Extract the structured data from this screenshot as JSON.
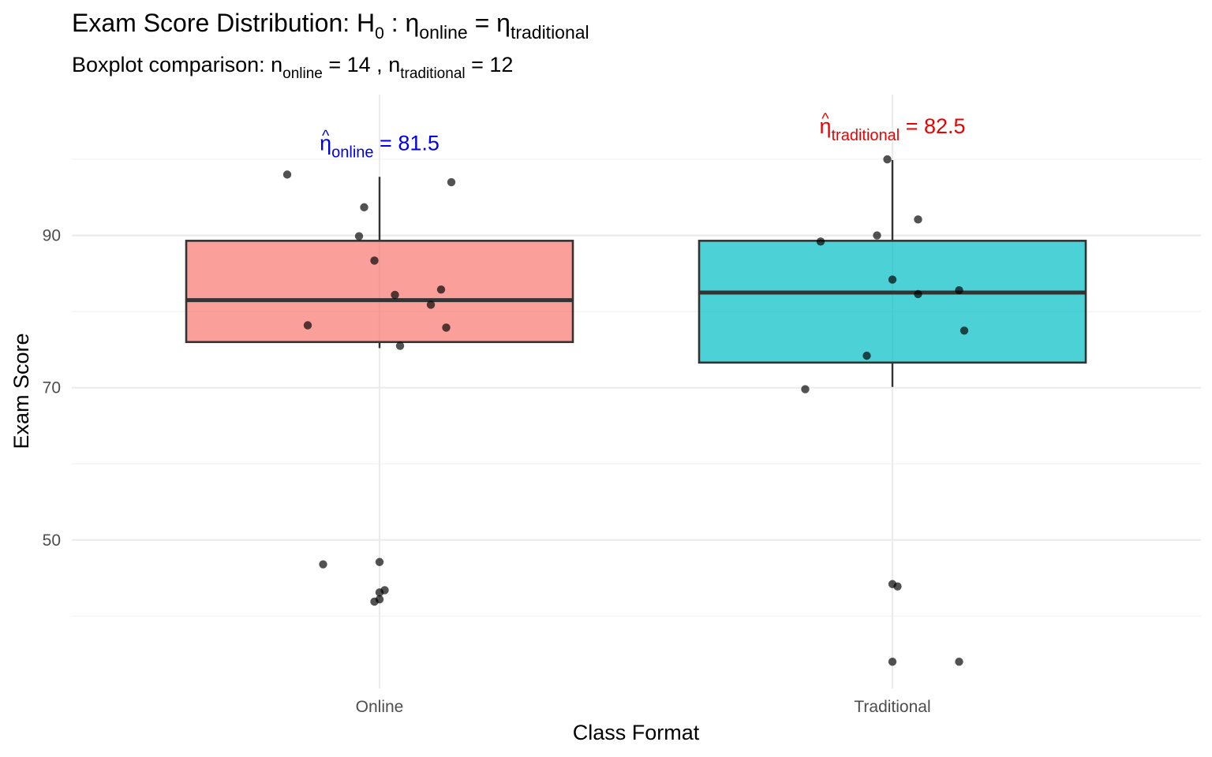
{
  "chart_data": {
    "type": "boxplot",
    "title": {
      "prefix": "Exam Score Distribution:  ",
      "h": "H",
      "h_sub": "0",
      "colon": " : ",
      "eta": "η",
      "sub1": "online",
      "equals": " = ",
      "sub2": "traditional"
    },
    "subtitle": {
      "prefix": "Boxplot comparison:  ",
      "n": "n",
      "sub1": "online",
      "mid1": " = 14 ,  ",
      "sub2": "traditional",
      "mid2": " = 12"
    },
    "xlabel": "Class Format",
    "ylabel": "Exam Score",
    "categories": [
      "Online",
      "Traditional"
    ],
    "yticks": [
      50,
      70,
      90
    ],
    "ylim": [
      30.5,
      108.5
    ],
    "grid": true,
    "legend": "none",
    "series": [
      {
        "category": "Online",
        "color": "#F8766D",
        "box": {
          "q1": 76.0,
          "median": 81.5,
          "q3": 89.3,
          "whisker_low": 75.2,
          "whisker_high": 97.7
        },
        "median_label": {
          "eta": "η",
          "hat": "^",
          "sub": "online",
          "value": " = 81.5",
          "color": "#0000EE"
        },
        "points": [
          {
            "dx": -0.18,
            "y": 98.0
          },
          {
            "dx": -0.03,
            "y": 93.7
          },
          {
            "dx": 0.14,
            "y": 97.0
          },
          {
            "dx": -0.04,
            "y": 89.9
          },
          {
            "dx": -0.01,
            "y": 86.7
          },
          {
            "dx": 0.03,
            "y": 82.2
          },
          {
            "dx": 0.12,
            "y": 82.9
          },
          {
            "dx": 0.1,
            "y": 80.9
          },
          {
            "dx": -0.14,
            "y": 78.2
          },
          {
            "dx": 0.13,
            "y": 77.9
          },
          {
            "dx": 0.04,
            "y": 75.5
          },
          {
            "dx": -0.11,
            "y": 46.8
          },
          {
            "dx": 0.0,
            "y": 47.1
          },
          {
            "dx": 0.01,
            "y": 43.4
          },
          {
            "dx": 0.0,
            "y": 43.1
          },
          {
            "dx": 0.0,
            "y": 42.2
          },
          {
            "dx": -0.01,
            "y": 41.9
          }
        ]
      },
      {
        "category": "Traditional",
        "color": "#00BFC4",
        "box": {
          "q1": 73.3,
          "median": 82.5,
          "q3": 89.3,
          "whisker_low": 70.1,
          "whisker_high": 99.9
        },
        "median_label": {
          "eta": "η",
          "hat": "^",
          "sub": "traditional",
          "value": " = 82.5",
          "color": "#EE0000"
        },
        "points": [
          {
            "dx": -0.01,
            "y": 100.0
          },
          {
            "dx": 0.05,
            "y": 92.1
          },
          {
            "dx": -0.14,
            "y": 89.2
          },
          {
            "dx": -0.03,
            "y": 90.0
          },
          {
            "dx": 0.0,
            "y": 84.2
          },
          {
            "dx": 0.05,
            "y": 82.3
          },
          {
            "dx": 0.13,
            "y": 82.8
          },
          {
            "dx": 0.14,
            "y": 77.5
          },
          {
            "dx": -0.05,
            "y": 74.2
          },
          {
            "dx": -0.17,
            "y": 69.8
          },
          {
            "dx": 0.0,
            "y": 44.2
          },
          {
            "dx": 0.01,
            "y": 43.9
          },
          {
            "dx": 0.0,
            "y": 34.0
          },
          {
            "dx": 0.13,
            "y": 34.0
          }
        ]
      }
    ]
  }
}
